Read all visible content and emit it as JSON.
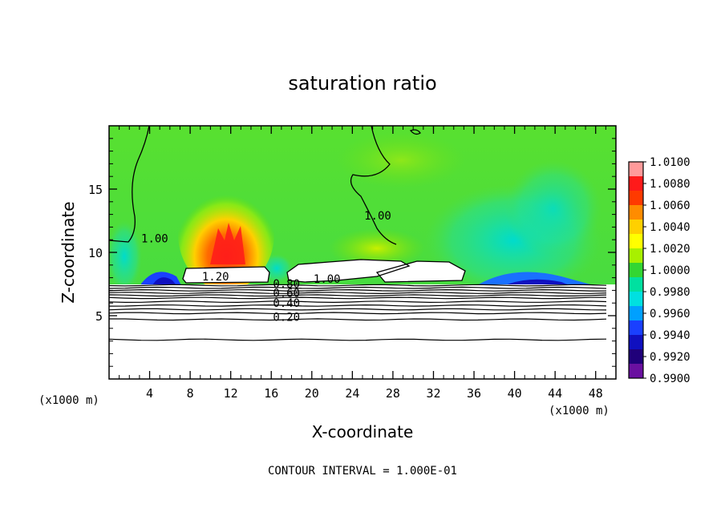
{
  "chart_data": {
    "type": "heatmap",
    "title": "saturation ratio",
    "xlabel": "X-coordinate",
    "ylabel": "Z-coordinate",
    "x_unit_left": "(x1000 m)",
    "x_unit_right": "(x1000 m)",
    "footer": "CONTOUR INTERVAL = 1.000E-01",
    "xlim": [
      0,
      50
    ],
    "ylim": [
      0,
      20
    ],
    "x_ticks": [
      4,
      8,
      12,
      16,
      20,
      24,
      28,
      32,
      36,
      40,
      44,
      48
    ],
    "y_ticks": [
      5,
      10,
      15
    ],
    "colorbar": {
      "labels": [
        "1.0100",
        "1.0080",
        "1.0060",
        "1.0040",
        "1.0020",
        "1.0000",
        "0.9980",
        "0.9960",
        "0.9940",
        "0.9920",
        "0.9900"
      ],
      "colors": [
        "#ff9a9a",
        "#ff1a1a",
        "#ff3a00",
        "#ff8c00",
        "#ffd000",
        "#ffff00",
        "#a8f000",
        "#33d633",
        "#00e0a0",
        "#00e0e0",
        "#00a0ff",
        "#1a40ff",
        "#1010c0",
        "#20007a",
        "#6a10a0"
      ]
    },
    "contour_labels": [
      {
        "text": "1.00",
        "x": 4.5,
        "z": 10.8
      },
      {
        "text": "1.00",
        "x": 26.5,
        "z": 12.6
      },
      {
        "text": "1.20",
        "x": 10.5,
        "z": 7.8
      },
      {
        "text": "1.00",
        "x": 21.5,
        "z": 7.6
      },
      {
        "text": "0.80",
        "x": 17.5,
        "z": 7.2
      },
      {
        "text": "0.60",
        "x": 17.5,
        "z": 6.5
      },
      {
        "text": "0.40",
        "x": 17.5,
        "z": 5.7
      },
      {
        "text": "0.20",
        "x": 17.5,
        "z": 4.6
      }
    ],
    "contour_levels_z": [
      7.4,
      7.2,
      7.0,
      6.8,
      6.6,
      6.4,
      6.1,
      5.8,
      5.5,
      5.2,
      4.7,
      3.1
    ]
  }
}
